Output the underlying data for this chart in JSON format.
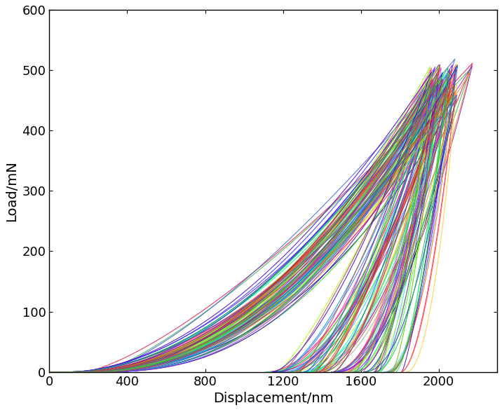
{
  "xlabel": "Displacement/nm",
  "ylabel": "Load/mN",
  "xlim": [
    0,
    2300
  ],
  "ylim": [
    0,
    600
  ],
  "xticks": [
    0,
    400,
    800,
    1200,
    1600,
    2000
  ],
  "yticks": [
    0,
    100,
    200,
    300,
    400,
    500,
    600
  ],
  "background_color": "#ffffff",
  "xlabel_fontsize": 14,
  "ylabel_fontsize": 14,
  "tick_fontsize": 13,
  "linewidth": 0.75,
  "num_curves": 100,
  "seed": 7
}
